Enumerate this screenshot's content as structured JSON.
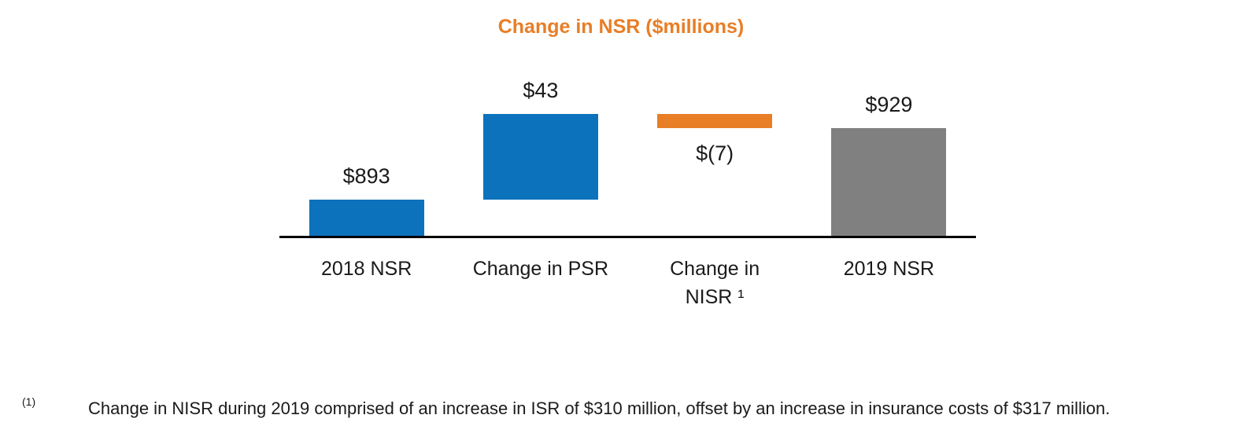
{
  "chart_data": {
    "type": "waterfall",
    "title": "Change in NSR ($millions)",
    "title_color": "#E87E26",
    "unit": "$millions",
    "categories": [
      "2018 NSR",
      "Change in PSR",
      "Change in\nNISR ¹",
      "2019 NSR"
    ],
    "bars": [
      {
        "category": "2018 NSR",
        "value": 893,
        "label": "$893",
        "kind": "absolute",
        "color": "#0D72BC",
        "label_position": "above"
      },
      {
        "category": "Change in PSR",
        "value": 43,
        "label": "$43",
        "kind": "delta",
        "color": "#0D72BC",
        "label_position": "above"
      },
      {
        "category": "Change in\nNISR ¹",
        "value": -7,
        "label": "$(7)",
        "kind": "delta",
        "color": "#E87E26",
        "label_position": "below"
      },
      {
        "category": "2019 NSR",
        "value": 929,
        "label": "$929",
        "kind": "total",
        "color": "#808080",
        "label_position": "above"
      }
    ],
    "ylim": [
      875,
      950
    ],
    "baseline_color": "#000000",
    "grid": false,
    "legend": false
  },
  "footnote": {
    "marker": "(1)",
    "text": "Change in NISR during 2019 comprised of an increase in ISR of $310 million, offset by an increase in insurance costs of $317 million."
  }
}
